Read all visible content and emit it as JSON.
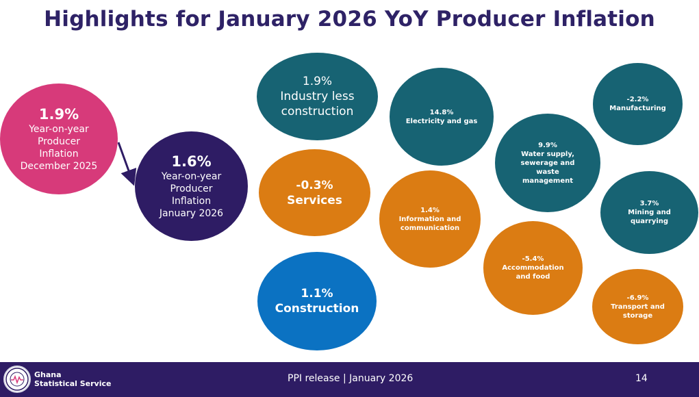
{
  "title": "Highlights for January 2026 YoY Producer Inflation",
  "bubbles": {
    "december": {
      "value": "1.9%",
      "label": "Year-on-year\nProducer\nInflation\nDecember 2025",
      "color": "#d73a7a"
    },
    "january": {
      "value": "1.6%",
      "label": "Year-on-year\nProducer\nInflation\nJanuary 2026",
      "color": "#2e1c64"
    },
    "industry": {
      "value": "1.9%",
      "label": "Industry less\nconstruction",
      "color": "#176373"
    },
    "services": {
      "value": "-0.3%",
      "label": "Services",
      "color": "#db7c13"
    },
    "construction": {
      "value": "1.1%",
      "label": "Construction",
      "color": "#0b72c2"
    },
    "electricity": {
      "value": "14.8%",
      "label": "Electricity and gas"
    },
    "manufacturing": {
      "value": "-2.2%",
      "label": "Manufacturing"
    },
    "water": {
      "value": "9.9%",
      "label": "Water supply,\nsewerage and\nwaste\nmanagement"
    },
    "mining": {
      "value": "3.7%",
      "label": "Mining and\nquarrying"
    },
    "information": {
      "value": "1.4%",
      "label": "Information and\ncommunication"
    },
    "accommodation": {
      "value": "-5.4%",
      "label": "Accommodation\nand food"
    },
    "transport": {
      "value": "-6.9%",
      "label": "Transport and\nstorage"
    }
  },
  "footer": {
    "org_name": "Ghana\nStatistical Service",
    "release": "PPI release  |  January 2026",
    "page_number": "14",
    "logo": "ghana-statistical-service-seal"
  }
}
